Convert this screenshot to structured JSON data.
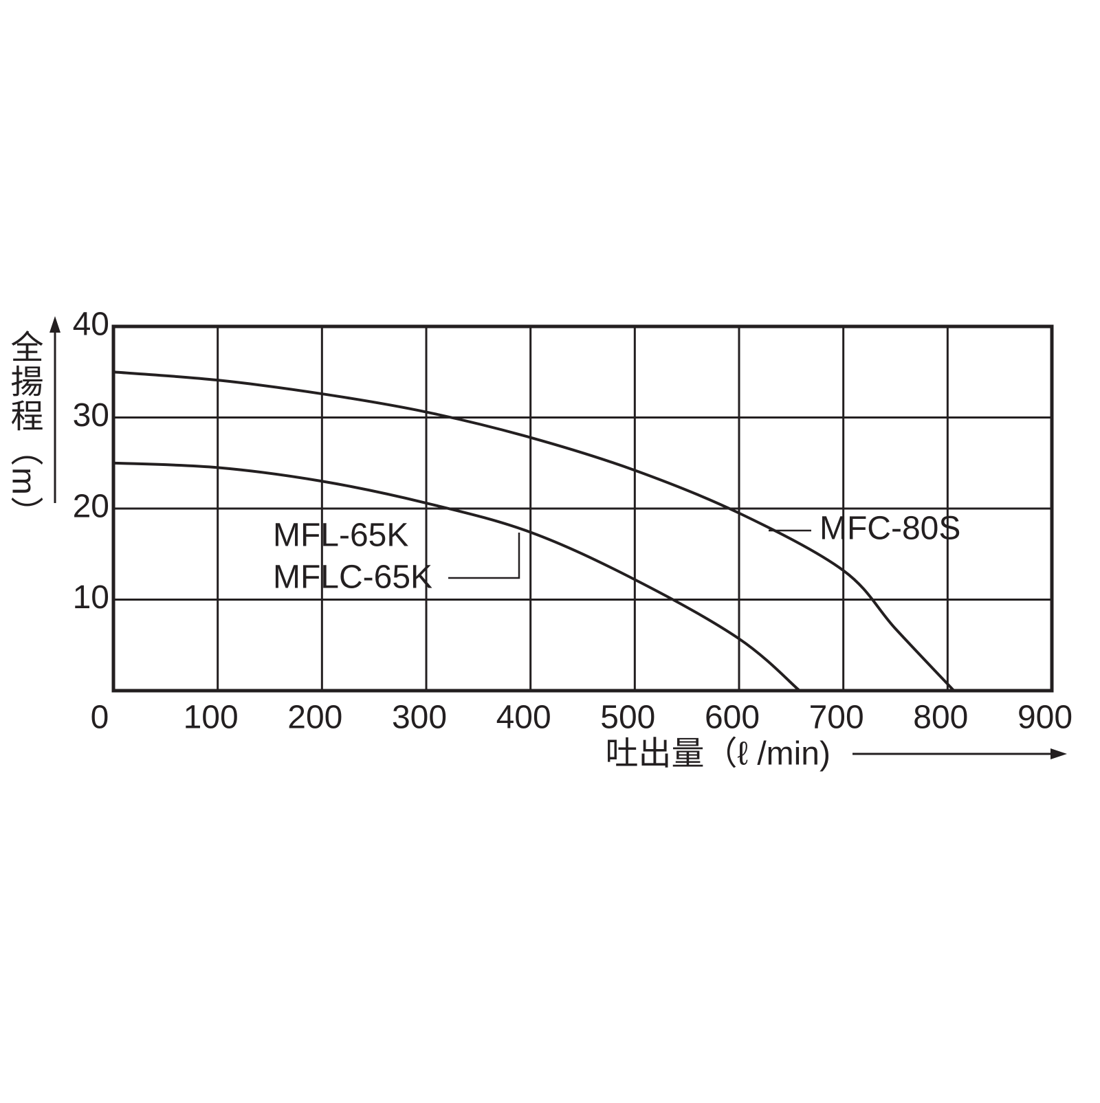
{
  "chart_data": {
    "type": "line",
    "xlabel": "吐出量（ℓ /min)",
    "ylabel": "全揚程（m）",
    "xlim": [
      0,
      900
    ],
    "xticks": [
      0,
      100,
      200,
      300,
      400,
      500,
      600,
      700,
      800,
      900
    ],
    "ylim": [
      0,
      40
    ],
    "yticks": [
      10,
      20,
      30,
      40
    ],
    "grid": true,
    "series": [
      {
        "name": "MFL-65K",
        "color": "#231f20",
        "x": [
          0,
          100,
          200,
          300,
          400,
          500,
          600,
          658
        ],
        "values": [
          25,
          24.5,
          23.0,
          20.6,
          17.4,
          12.2,
          5.7,
          0
        ]
      },
      {
        "name": "MFC-80S",
        "color": "#231f20",
        "x": [
          0,
          100,
          200,
          300,
          400,
          500,
          600,
          700,
          750,
          806
        ],
        "values": [
          35,
          34.1,
          32.6,
          30.6,
          27.8,
          24.2,
          19.5,
          13.2,
          6.8,
          0
        ]
      }
    ],
    "annotations": [
      "MFLC-65K"
    ]
  }
}
